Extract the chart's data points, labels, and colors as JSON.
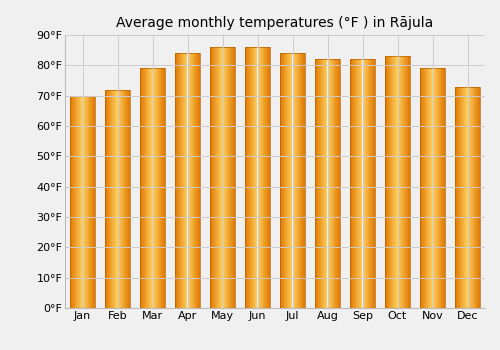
{
  "title": "Average monthly temperatures (°F ) in Rājula",
  "months": [
    "Jan",
    "Feb",
    "Mar",
    "Apr",
    "May",
    "Jun",
    "Jul",
    "Aug",
    "Sep",
    "Oct",
    "Nov",
    "Dec"
  ],
  "values": [
    70,
    72,
    79,
    84,
    86,
    86,
    84,
    82,
    82,
    83,
    79,
    73
  ],
  "bar_color_center": "#FFD060",
  "bar_color_edge": "#E07800",
  "bar_edge_color": "#B86000",
  "background_color": "#f0f0f0",
  "ylim": [
    0,
    90
  ],
  "yticks": [
    0,
    10,
    20,
    30,
    40,
    50,
    60,
    70,
    80,
    90
  ],
  "ytick_labels": [
    "0°F",
    "10°F",
    "20°F",
    "30°F",
    "40°F",
    "50°F",
    "60°F",
    "70°F",
    "80°F",
    "90°F"
  ],
  "title_fontsize": 10,
  "tick_fontsize": 8,
  "grid_color": "#cccccc",
  "bar_width": 0.72,
  "n_grad": 60
}
